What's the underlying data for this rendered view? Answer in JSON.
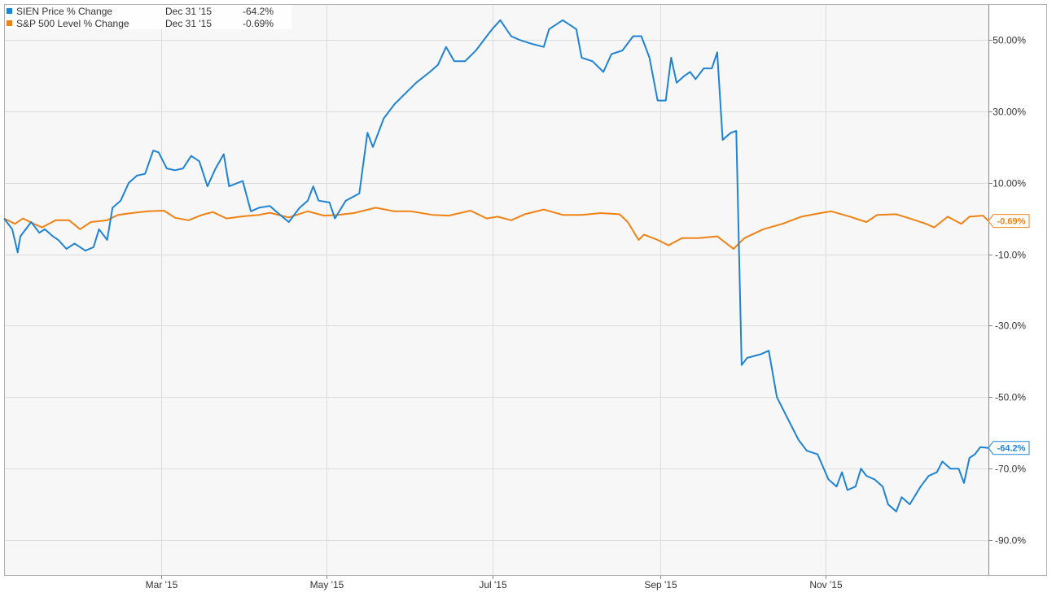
{
  "legend": {
    "items": [
      {
        "name": "SIEN Price % Change",
        "date": "Dec 31 '15",
        "value": "-64.2%",
        "color": "#1f83d4"
      },
      {
        "name": "S&P 500 Level % Change",
        "date": "Dec 31 '15",
        "value": "-0.69%",
        "color": "#f08215"
      }
    ]
  },
  "chart_data": {
    "type": "line",
    "title": "",
    "xlabel": "",
    "ylabel": "",
    "ylim": [
      -100,
      60
    ],
    "xlim": [
      "2015-01-02",
      "2015-12-31"
    ],
    "grid": true,
    "y_ticks": [
      50,
      30,
      10,
      -10,
      -30,
      -50,
      -70,
      -90
    ],
    "y_tick_labels": [
      "50.00%",
      "30.00%",
      "10.00%",
      "-10.0%",
      "-30.0%",
      "-50.0%",
      "-70.0%",
      "-90.0%"
    ],
    "x_ticks": [
      "2015-03-01",
      "2015-05-01",
      "2015-07-01",
      "2015-09-01",
      "2015-11-01"
    ],
    "x_tick_labels": [
      "Mar '15",
      "May '15",
      "Jul '15",
      "Sep '15",
      "Nov '15"
    ],
    "end_labels": [
      {
        "series": "SIEN Price % Change",
        "value": -64.2,
        "label": "-64.2%"
      },
      {
        "series": "S&P 500 Level % Change",
        "value": -0.69,
        "label": "-0.69%"
      }
    ],
    "series": [
      {
        "name": "SIEN Price % Change",
        "color": "#1f83d4",
        "points": [
          [
            "2015-01-02",
            0
          ],
          [
            "2015-01-05",
            -3
          ],
          [
            "2015-01-07",
            -9.5
          ],
          [
            "2015-01-08",
            -5
          ],
          [
            "2015-01-12",
            -1
          ],
          [
            "2015-01-15",
            -4
          ],
          [
            "2015-01-17",
            -3
          ],
          [
            "2015-01-20",
            -5
          ],
          [
            "2015-01-22",
            -6
          ],
          [
            "2015-01-25",
            -8.5
          ],
          [
            "2015-01-28",
            -7
          ],
          [
            "2015-02-01",
            -9
          ],
          [
            "2015-02-04",
            -8
          ],
          [
            "2015-02-06",
            -3
          ],
          [
            "2015-02-09",
            -6
          ],
          [
            "2015-02-11",
            3
          ],
          [
            "2015-02-14",
            5
          ],
          [
            "2015-02-17",
            10
          ],
          [
            "2015-02-20",
            12
          ],
          [
            "2015-02-23",
            12.5
          ],
          [
            "2015-02-26",
            19
          ],
          [
            "2015-02-28",
            18.5
          ],
          [
            "2015-03-03",
            14
          ],
          [
            "2015-03-06",
            13.5
          ],
          [
            "2015-03-09",
            14
          ],
          [
            "2015-03-12",
            17.5
          ],
          [
            "2015-03-15",
            16
          ],
          [
            "2015-03-18",
            9
          ],
          [
            "2015-03-21",
            14
          ],
          [
            "2015-03-24",
            18
          ],
          [
            "2015-03-26",
            9
          ],
          [
            "2015-03-31",
            10.5
          ],
          [
            "2015-04-03",
            2
          ],
          [
            "2015-04-06",
            3
          ],
          [
            "2015-04-10",
            3.5
          ],
          [
            "2015-04-13",
            1.5
          ],
          [
            "2015-04-17",
            -1
          ],
          [
            "2015-04-21",
            3
          ],
          [
            "2015-04-24",
            5
          ],
          [
            "2015-04-26",
            9
          ],
          [
            "2015-04-28",
            5
          ],
          [
            "2015-05-02",
            4.5
          ],
          [
            "2015-05-04",
            0
          ],
          [
            "2015-05-08",
            5
          ],
          [
            "2015-05-13",
            7
          ],
          [
            "2015-05-16",
            24
          ],
          [
            "2015-05-18",
            20
          ],
          [
            "2015-05-22",
            28
          ],
          [
            "2015-05-26",
            32
          ],
          [
            "2015-05-30",
            35
          ],
          [
            "2015-06-03",
            38
          ],
          [
            "2015-06-08",
            41
          ],
          [
            "2015-06-11",
            43
          ],
          [
            "2015-06-14",
            48
          ],
          [
            "2015-06-17",
            44
          ],
          [
            "2015-06-21",
            44
          ],
          [
            "2015-06-25",
            47
          ],
          [
            "2015-06-29",
            51
          ],
          [
            "2015-07-01",
            53
          ],
          [
            "2015-07-04",
            55.5
          ],
          [
            "2015-07-08",
            51
          ],
          [
            "2015-07-11",
            50
          ],
          [
            "2015-07-15",
            49
          ],
          [
            "2015-07-20",
            48
          ],
          [
            "2015-07-22",
            53
          ],
          [
            "2015-07-24",
            54
          ],
          [
            "2015-07-27",
            55.5
          ],
          [
            "2015-08-01",
            53
          ],
          [
            "2015-08-03",
            45
          ],
          [
            "2015-08-07",
            44
          ],
          [
            "2015-08-11",
            41
          ],
          [
            "2015-08-14",
            46
          ],
          [
            "2015-08-18",
            47
          ],
          [
            "2015-08-22",
            51
          ],
          [
            "2015-08-25",
            51
          ],
          [
            "2015-08-28",
            45
          ],
          [
            "2015-08-31",
            33
          ],
          [
            "2015-09-03",
            33
          ],
          [
            "2015-09-05",
            45
          ],
          [
            "2015-09-07",
            38
          ],
          [
            "2015-09-10",
            40
          ],
          [
            "2015-09-12",
            41
          ],
          [
            "2015-09-14",
            39
          ],
          [
            "2015-09-17",
            42
          ],
          [
            "2015-09-20",
            42
          ],
          [
            "2015-09-22",
            46.5
          ],
          [
            "2015-09-24",
            22
          ],
          [
            "2015-09-27",
            24
          ],
          [
            "2015-09-29",
            24.5
          ],
          [
            "2015-10-01",
            -41
          ],
          [
            "2015-10-03",
            -39
          ],
          [
            "2015-10-08",
            -38
          ],
          [
            "2015-10-11",
            -37
          ],
          [
            "2015-10-14",
            -50
          ],
          [
            "2015-10-18",
            -56
          ],
          [
            "2015-10-22",
            -62
          ],
          [
            "2015-10-25",
            -65
          ],
          [
            "2015-10-29",
            -66
          ],
          [
            "2015-11-02",
            -73
          ],
          [
            "2015-11-05",
            -75
          ],
          [
            "2015-11-07",
            -71
          ],
          [
            "2015-11-09",
            -76
          ],
          [
            "2015-11-12",
            -75
          ],
          [
            "2015-11-14",
            -70
          ],
          [
            "2015-11-16",
            -72
          ],
          [
            "2015-11-19",
            -73
          ],
          [
            "2015-11-22",
            -75
          ],
          [
            "2015-11-24",
            -80
          ],
          [
            "2015-11-27",
            -82
          ],
          [
            "2015-11-29",
            -78
          ],
          [
            "2015-12-02",
            -80
          ],
          [
            "2015-12-06",
            -75
          ],
          [
            "2015-12-09",
            -72
          ],
          [
            "2015-12-12",
            -71
          ],
          [
            "2015-12-14",
            -68
          ],
          [
            "2015-12-17",
            -70
          ],
          [
            "2015-12-20",
            -70
          ],
          [
            "2015-12-22",
            -74
          ],
          [
            "2015-12-24",
            -67
          ],
          [
            "2015-12-26",
            -66
          ],
          [
            "2015-12-28",
            -64
          ],
          [
            "2015-12-31",
            -64.2
          ]
        ]
      },
      {
        "name": "S&P 500 Level % Change",
        "color": "#f08215",
        "points": [
          [
            "2015-01-02",
            0
          ],
          [
            "2015-01-06",
            -1.5
          ],
          [
            "2015-01-09",
            0
          ],
          [
            "2015-01-13",
            -1.5
          ],
          [
            "2015-01-16",
            -2.5
          ],
          [
            "2015-01-21",
            -0.5
          ],
          [
            "2015-01-26",
            -0.5
          ],
          [
            "2015-01-30",
            -3
          ],
          [
            "2015-02-03",
            -1
          ],
          [
            "2015-02-09",
            -0.5
          ],
          [
            "2015-02-13",
            1
          ],
          [
            "2015-02-18",
            1.5
          ],
          [
            "2015-02-24",
            2
          ],
          [
            "2015-03-02",
            2.2
          ],
          [
            "2015-03-06",
            0.2
          ],
          [
            "2015-03-11",
            -0.5
          ],
          [
            "2015-03-16",
            1
          ],
          [
            "2015-03-20",
            1.8
          ],
          [
            "2015-03-25",
            0
          ],
          [
            "2015-03-31",
            0.6
          ],
          [
            "2015-04-06",
            1
          ],
          [
            "2015-04-10",
            1.6
          ],
          [
            "2015-04-17",
            0.3
          ],
          [
            "2015-04-24",
            2
          ],
          [
            "2015-04-30",
            0.8
          ],
          [
            "2015-05-05",
            1
          ],
          [
            "2015-05-11",
            1.5
          ],
          [
            "2015-05-19",
            3
          ],
          [
            "2015-05-26",
            2
          ],
          [
            "2015-06-01",
            2
          ],
          [
            "2015-06-09",
            1
          ],
          [
            "2015-06-15",
            0.8
          ],
          [
            "2015-06-23",
            2.2
          ],
          [
            "2015-06-29",
            0
          ],
          [
            "2015-07-03",
            0.5
          ],
          [
            "2015-07-08",
            -0.5
          ],
          [
            "2015-07-13",
            1.2
          ],
          [
            "2015-07-20",
            2.5
          ],
          [
            "2015-07-27",
            1
          ],
          [
            "2015-08-03",
            1
          ],
          [
            "2015-08-10",
            1.5
          ],
          [
            "2015-08-17",
            1.2
          ],
          [
            "2015-08-20",
            -1
          ],
          [
            "2015-08-24",
            -6
          ],
          [
            "2015-08-26",
            -4.5
          ],
          [
            "2015-08-31",
            -6
          ],
          [
            "2015-09-04",
            -7.5
          ],
          [
            "2015-09-09",
            -5.5
          ],
          [
            "2015-09-15",
            -5.5
          ],
          [
            "2015-09-22",
            -5
          ],
          [
            "2015-09-28",
            -8.5
          ],
          [
            "2015-10-02",
            -5.5
          ],
          [
            "2015-10-09",
            -3
          ],
          [
            "2015-10-16",
            -1.5
          ],
          [
            "2015-10-23",
            0.5
          ],
          [
            "2015-10-30",
            1.5
          ],
          [
            "2015-11-03",
            2
          ],
          [
            "2015-11-10",
            0.5
          ],
          [
            "2015-11-16",
            -1
          ],
          [
            "2015-11-20",
            1
          ],
          [
            "2015-11-27",
            1.2
          ],
          [
            "2015-12-02",
            0
          ],
          [
            "2015-12-08",
            -1.5
          ],
          [
            "2015-12-11",
            -2.5
          ],
          [
            "2015-12-16",
            0.5
          ],
          [
            "2015-12-21",
            -1.5
          ],
          [
            "2015-12-24",
            0.5
          ],
          [
            "2015-12-29",
            0.8
          ],
          [
            "2015-12-31",
            -0.69
          ]
        ]
      }
    ]
  }
}
